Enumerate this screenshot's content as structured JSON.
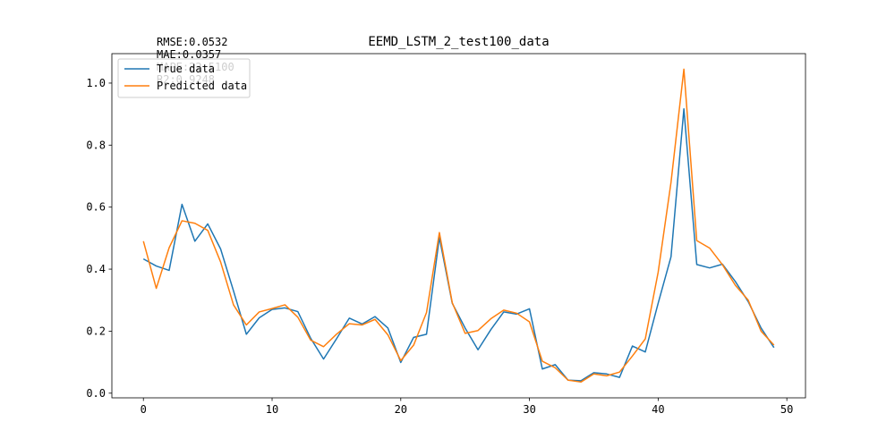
{
  "chart_data": {
    "type": "line",
    "title": "EEMD_LSTM_2_test100_data",
    "xlabel": "",
    "ylabel": "",
    "xlim": [
      -2.45,
      51.45
    ],
    "ylim": [
      -0.015,
      1.095
    ],
    "xticks": [
      0,
      10,
      20,
      30,
      40,
      50
    ],
    "yticks": [
      0.0,
      0.2,
      0.4,
      0.6,
      0.8,
      1.0
    ],
    "xtick_labels": [
      "0",
      "10",
      "20",
      "30",
      "40",
      "50"
    ],
    "ytick_labels": [
      "0.0",
      "0.2",
      "0.4",
      "0.6",
      "0.8",
      "1.0"
    ],
    "grid": false,
    "legend_position": "upper-left",
    "annotations": [
      "RMSE:0.0532",
      "MAE:0.0357",
      "MAPE:22.5100",
      "R2:0.9248"
    ],
    "x": [
      0,
      1,
      2,
      3,
      4,
      5,
      6,
      7,
      8,
      9,
      10,
      11,
      12,
      13,
      14,
      15,
      16,
      17,
      18,
      19,
      20,
      21,
      22,
      23,
      24,
      25,
      26,
      27,
      28,
      29,
      30,
      31,
      32,
      33,
      34,
      35,
      36,
      37,
      38,
      39,
      40,
      41,
      42,
      43,
      44,
      45,
      46,
      47,
      48,
      49
    ],
    "series": [
      {
        "name": "True data",
        "color": "#1f77b4",
        "values": [
          0.433,
          0.41,
          0.396,
          0.609,
          0.49,
          0.546,
          0.465,
          0.33,
          0.19,
          0.243,
          0.27,
          0.275,
          0.263,
          0.177,
          0.11,
          0.175,
          0.242,
          0.223,
          0.247,
          0.21,
          0.099,
          0.18,
          0.19,
          0.502,
          0.29,
          0.21,
          0.14,
          0.205,
          0.262,
          0.255,
          0.272,
          0.078,
          0.092,
          0.042,
          0.04,
          0.066,
          0.062,
          0.051,
          0.152,
          0.133,
          0.29,
          0.44,
          0.917,
          0.415,
          0.404,
          0.416,
          0.36,
          0.295,
          0.21,
          0.147
        ]
      },
      {
        "name": "Predicted data",
        "color": "#ff7f0e",
        "values": [
          0.49,
          0.338,
          0.469,
          0.556,
          0.548,
          0.525,
          0.423,
          0.285,
          0.22,
          0.262,
          0.273,
          0.285,
          0.245,
          0.171,
          0.15,
          0.19,
          0.224,
          0.22,
          0.238,
          0.188,
          0.105,
          0.155,
          0.26,
          0.518,
          0.292,
          0.193,
          0.202,
          0.24,
          0.268,
          0.258,
          0.23,
          0.103,
          0.082,
          0.042,
          0.036,
          0.062,
          0.056,
          0.068,
          0.12,
          0.175,
          0.39,
          0.68,
          1.045,
          0.492,
          0.468,
          0.414,
          0.348,
          0.3,
          0.2,
          0.155
        ]
      }
    ]
  }
}
